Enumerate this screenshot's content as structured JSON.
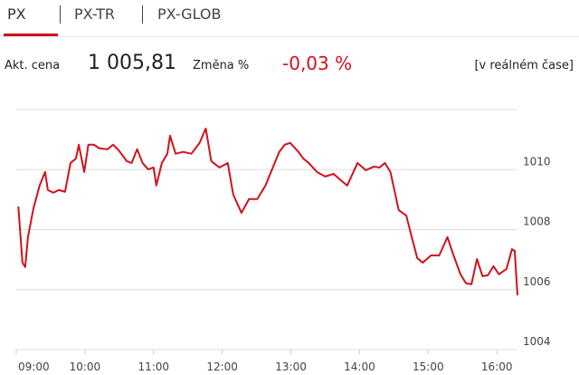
{
  "tabs": [
    "PX",
    "PX-TR",
    "PX-GLOB"
  ],
  "quote": {
    "price_label": "Akt. cena",
    "price": "1 005,81",
    "change_label": "Změna %",
    "change": "-0,03 %",
    "realtime": "[v reálném čase]"
  },
  "chart_data": {
    "type": "line",
    "color": "#d0121b",
    "x": [
      9.03,
      9.09,
      9.13,
      9.17,
      9.25,
      9.34,
      9.42,
      9.46,
      9.54,
      9.62,
      9.71,
      9.79,
      9.87,
      9.91,
      9.99,
      10.05,
      10.13,
      10.21,
      10.33,
      10.41,
      10.49,
      10.61,
      10.68,
      10.76,
      10.84,
      10.92,
      11.0,
      11.04,
      11.12,
      11.2,
      11.24,
      11.32,
      11.43,
      11.55,
      11.67,
      11.76,
      11.84,
      11.96,
      12.08,
      12.16,
      12.28,
      12.39,
      12.51,
      12.63,
      12.71,
      12.83,
      12.91,
      12.99,
      13.11,
      13.18,
      13.26,
      13.38,
      13.5,
      13.62,
      13.74,
      13.82,
      13.97,
      14.09,
      14.21,
      14.29,
      14.37,
      14.45,
      14.57,
      14.68,
      14.76,
      14.84,
      14.92,
      15.04,
      15.16,
      15.28,
      15.36,
      15.47,
      15.55,
      15.63,
      15.71,
      15.79,
      15.87,
      15.95,
      16.03,
      16.14,
      16.22,
      16.26,
      16.3
    ],
    "values": [
      1008.77,
      1006.9,
      1006.75,
      1007.75,
      1008.71,
      1009.47,
      1009.92,
      1009.32,
      1009.23,
      1009.32,
      1009.26,
      1010.22,
      1010.37,
      1010.83,
      1009.92,
      1010.83,
      1010.83,
      1010.71,
      1010.68,
      1010.83,
      1010.65,
      1010.28,
      1010.22,
      1010.68,
      1010.22,
      1010.01,
      1010.07,
      1009.47,
      1010.22,
      1010.53,
      1011.13,
      1010.53,
      1010.59,
      1010.53,
      1010.89,
      1011.37,
      1010.28,
      1010.07,
      1010.22,
      1009.17,
      1008.56,
      1009.02,
      1009.02,
      1009.47,
      1009.92,
      1010.59,
      1010.83,
      1010.89,
      1010.59,
      1010.37,
      1010.22,
      1009.92,
      1009.77,
      1009.86,
      1009.62,
      1009.47,
      1010.22,
      1009.98,
      1010.1,
      1010.07,
      1010.22,
      1009.92,
      1008.65,
      1008.47,
      1007.75,
      1007.05,
      1006.9,
      1007.14,
      1007.14,
      1007.75,
      1007.2,
      1006.51,
      1006.21,
      1006.18,
      1007.02,
      1006.45,
      1006.48,
      1006.78,
      1006.51,
      1006.69,
      1007.35,
      1007.29,
      1005.81
    ],
    "xlim": [
      9,
      16.3
    ],
    "xticks": [
      {
        "value": 9,
        "label": "09:00"
      },
      {
        "value": 10,
        "label": "10:00"
      },
      {
        "value": 11,
        "label": "11:00"
      },
      {
        "value": 12,
        "label": "12:00"
      },
      {
        "value": 13,
        "label": "13:00"
      },
      {
        "value": 14,
        "label": "14:00"
      },
      {
        "value": 15,
        "label": "15:00"
      },
      {
        "value": 16,
        "label": "16:00"
      }
    ],
    "ylim": [
      1004,
      1012
    ],
    "yticks": [
      1004,
      1006,
      1008,
      1010
    ],
    "grid": true
  }
}
